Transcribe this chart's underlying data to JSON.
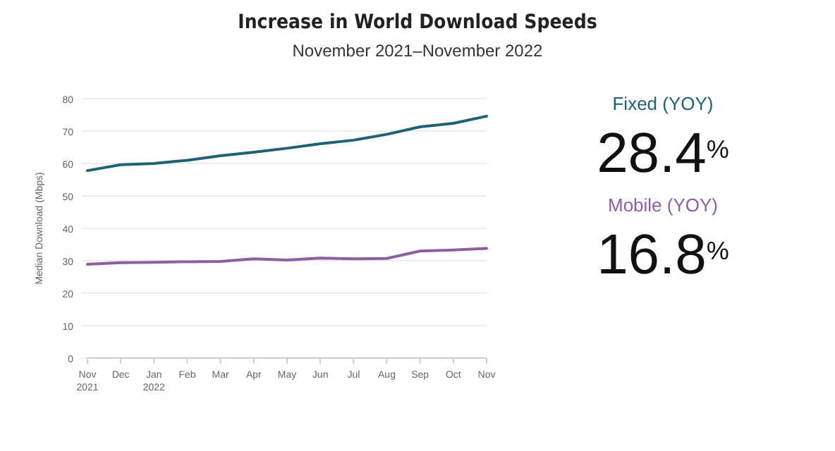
{
  "chart_data": {
    "type": "line",
    "title": "Increase in World Download Speeds",
    "subtitle": "November 2021–November 2022",
    "ylabel": "Median Download (Mbps)",
    "categories": [
      "Nov\n2021",
      "Dec",
      "Jan\n2022",
      "Feb",
      "Mar",
      "Apr",
      "May",
      "Jun",
      "Jul",
      "Aug",
      "Sep",
      "Oct",
      "Nov"
    ],
    "series": [
      {
        "name": "Fixed (YOY)",
        "color": "#1f6175",
        "values": [
          57.8,
          59.6,
          60,
          61,
          62.4,
          63.5,
          64.7,
          66.1,
          67.2,
          69,
          71.3,
          72.4,
          74.6
        ]
      },
      {
        "name": "Mobile (YOY)",
        "color": "#8e5ea2",
        "values": [
          28.9,
          29.4,
          29.5,
          29.7,
          29.8,
          30.6,
          30.2,
          30.8,
          30.6,
          30.7,
          33,
          33.3,
          33.8
        ]
      }
    ],
    "annotations": [
      "28.4$^{%}$",
      "16.8$^{%}$"
    ],
    "ylim": [
      0,
      80
    ],
    "yticks": [
      0,
      10,
      20,
      30,
      40,
      50,
      60,
      70,
      80
    ],
    "grid": "y",
    "legend": "right",
    "marker": "none",
    "line_style": "solid"
  }
}
